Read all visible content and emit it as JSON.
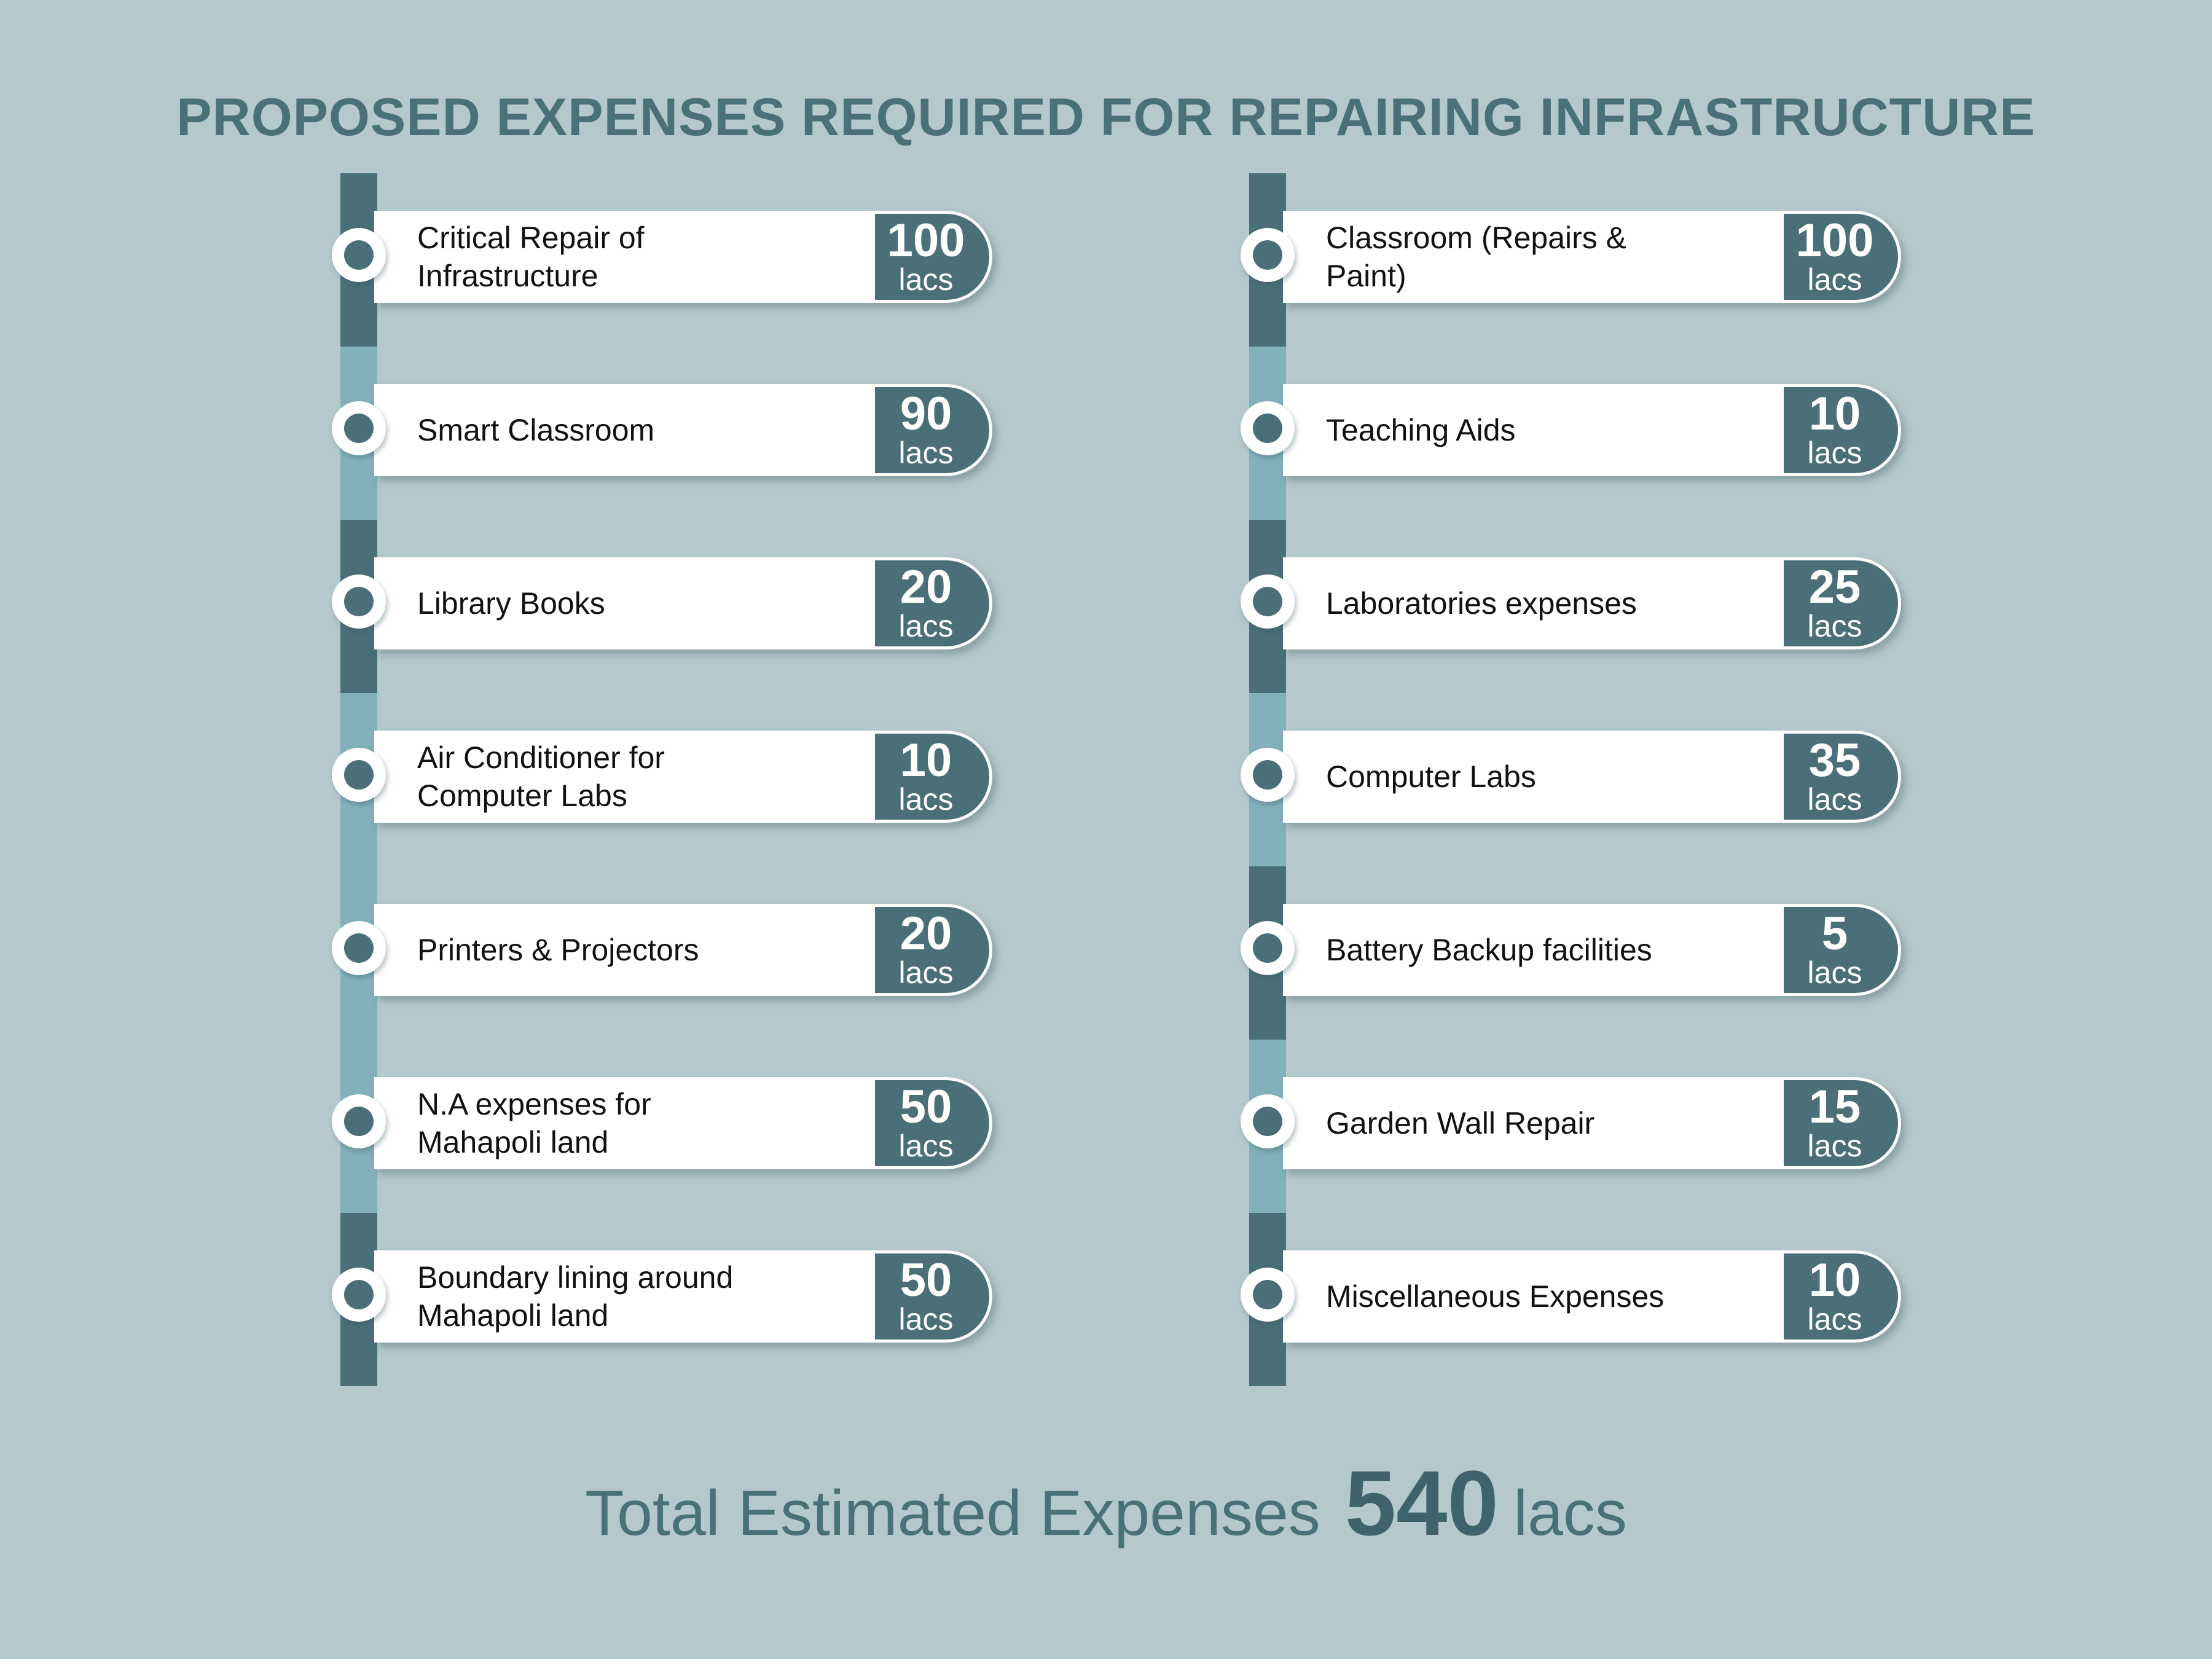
{
  "title": "PROPOSED EXPENSES REQUIRED FOR REPAIRING INFRASTRUCTURE",
  "colors": {
    "background": "#b5c8cd",
    "accent_dark": "#4a6f78",
    "accent_light": "#82b1bc",
    "title": "#4a7079",
    "card": "#ffffff"
  },
  "left_items": [
    {
      "label": "Critical Repair of Infrastructure",
      "value": "100",
      "unit": "lacs",
      "shade": "dark"
    },
    {
      "label": "Smart Classroom",
      "value": "90",
      "unit": "lacs",
      "shade": "light"
    },
    {
      "label": "Library Books",
      "value": "20",
      "unit": "lacs",
      "shade": "dark"
    },
    {
      "label": "Air Conditioner for\nComputer Labs",
      "value": "10",
      "unit": "lacs",
      "shade": "light"
    },
    {
      "label": "Printers & Projectors",
      "value": "20",
      "unit": "lacs",
      "shade": "light"
    },
    {
      "label": "N.A expenses for\nMahapoli land",
      "value": "50",
      "unit": "lacs",
      "shade": "light"
    },
    {
      "label": "Boundary lining around\nMahapoli land",
      "value": "50",
      "unit": "lacs",
      "shade": "dark"
    }
  ],
  "right_items": [
    {
      "label": "Classroom (Repairs & Paint)",
      "value": "100",
      "unit": "lacs",
      "shade": "dark"
    },
    {
      "label": "Teaching Aids",
      "value": "10",
      "unit": "lacs",
      "shade": "light"
    },
    {
      "label": "Laboratories expenses",
      "value": "25",
      "unit": "lacs",
      "shade": "dark"
    },
    {
      "label": "Computer Labs",
      "value": "35",
      "unit": "lacs",
      "shade": "light"
    },
    {
      "label": "Battery Backup facilities",
      "value": "5",
      "unit": "lacs",
      "shade": "dark"
    },
    {
      "label": "Garden Wall Repair",
      "value": "15",
      "unit": "lacs",
      "shade": "light"
    },
    {
      "label": "Miscellaneous Expenses",
      "value": "10",
      "unit": "lacs",
      "shade": "dark"
    }
  ],
  "total": {
    "label": "Total Estimated Expenses",
    "value": "540",
    "unit": "lacs"
  }
}
